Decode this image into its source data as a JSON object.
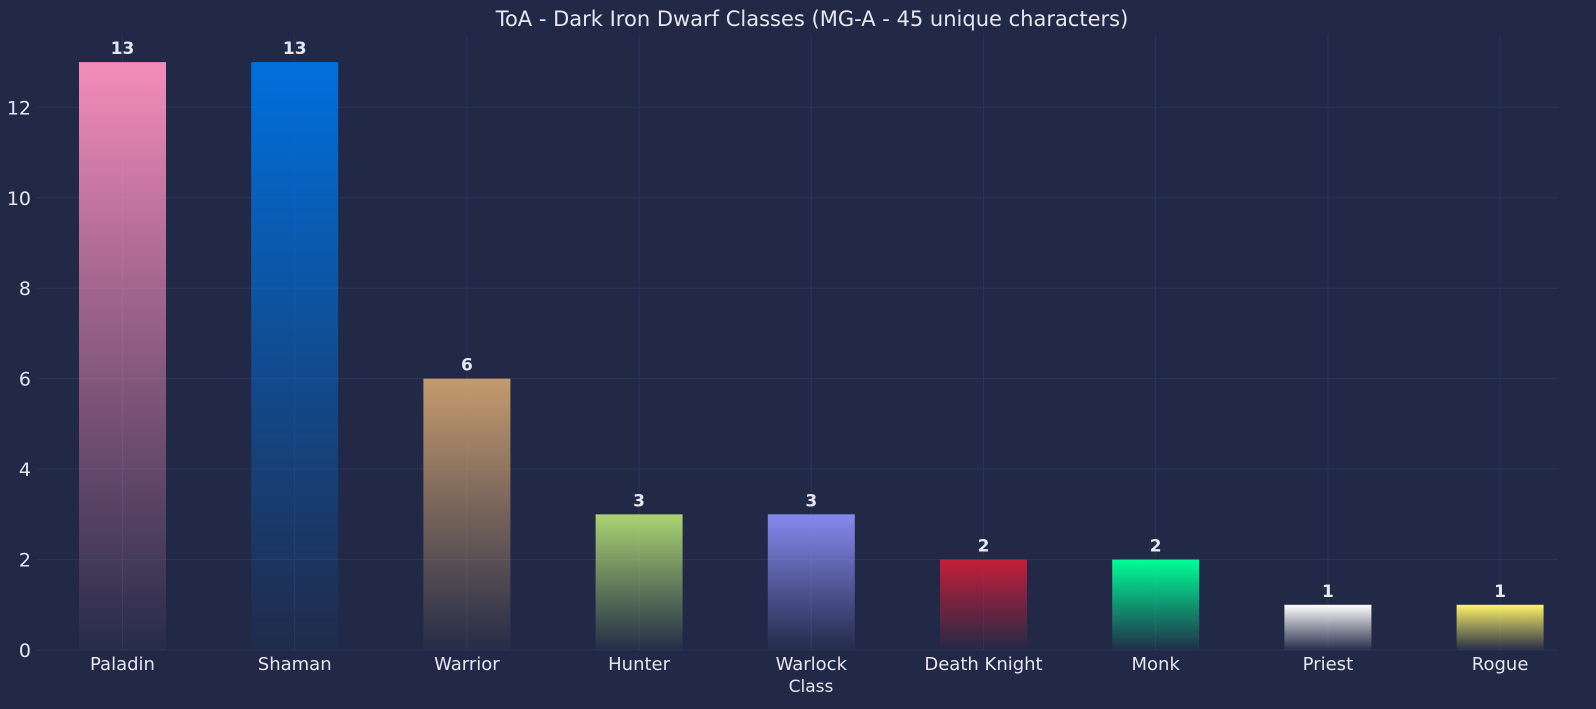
{
  "chart_data": {
    "type": "bar",
    "title": "ToA - Dark Iron Dwarf Classes (MG-A - 45 unique characters)",
    "xlabel": "Class",
    "ylabel": "",
    "categories": [
      "Paladin",
      "Shaman",
      "Warrior",
      "Hunter",
      "Warlock",
      "Death Knight",
      "Monk",
      "Priest",
      "Rogue"
    ],
    "values": [
      13,
      13,
      6,
      3,
      3,
      2,
      2,
      1,
      1
    ],
    "colors": [
      "#F48CBA",
      "#0070DD",
      "#C69B6D",
      "#AAD372",
      "#8788EE",
      "#C41E3A",
      "#00FF98",
      "#FFFFFF",
      "#FFF468"
    ],
    "ylim": [
      0,
      13.6
    ],
    "yticks": [
      0,
      2,
      4,
      6,
      8,
      10,
      12
    ],
    "grid": true,
    "show_data_labels": true,
    "background": "#212946",
    "text_color": "#e6e6ef",
    "grid_color": "#2A3459"
  }
}
